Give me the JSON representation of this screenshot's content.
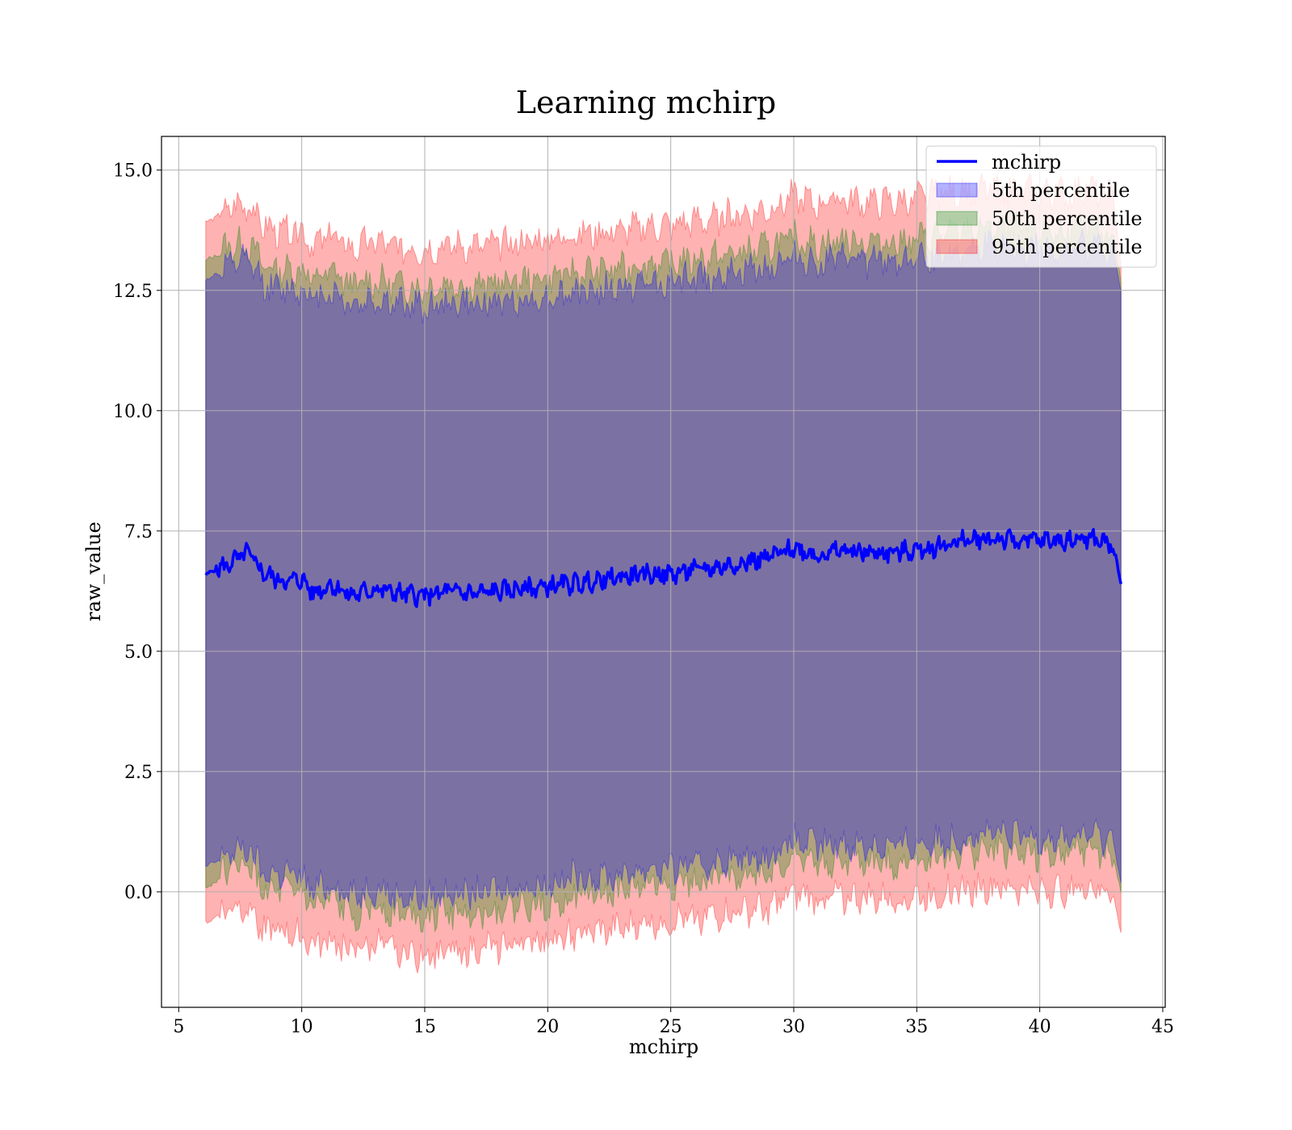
{
  "chart_data": {
    "type": "area",
    "title": "Learning mchirp",
    "xlabel": "mchirp",
    "ylabel": "raw_value",
    "xlim": [
      4.3,
      45.1
    ],
    "ylim": [
      -2.4,
      15.7
    ],
    "xticks": [
      5,
      10,
      15,
      20,
      25,
      30,
      35,
      40,
      45
    ],
    "xtick_labels": [
      "5",
      "10",
      "15",
      "20",
      "25",
      "30",
      "35",
      "40",
      "45"
    ],
    "yticks": [
      0.0,
      2.5,
      5.0,
      7.5,
      10.0,
      12.5,
      15.0
    ],
    "ytick_labels": [
      "0.0",
      "2.5",
      "5.0",
      "7.5",
      "10.0",
      "12.5",
      "15.0"
    ],
    "grid": true,
    "legend_position": "top-right",
    "x": [
      6.1,
      7,
      7.8,
      8.5,
      9.3,
      10,
      10.5,
      11.2,
      12,
      13,
      14,
      15,
      16,
      17,
      18,
      19,
      20,
      21,
      22,
      23,
      24,
      25,
      26,
      27,
      28,
      29,
      30,
      31,
      32,
      33,
      34,
      35,
      36,
      37,
      38,
      39,
      40,
      41,
      42,
      43,
      43.3
    ],
    "series": [
      {
        "name": "mchirp",
        "kind": "line",
        "color": "#0000ff",
        "values": [
          6.6,
          6.8,
          7.05,
          6.6,
          6.45,
          6.5,
          6.2,
          6.4,
          6.15,
          6.3,
          6.2,
          6.15,
          6.25,
          6.2,
          6.25,
          6.3,
          6.35,
          6.4,
          6.45,
          6.55,
          6.6,
          6.6,
          6.7,
          6.75,
          6.85,
          6.95,
          7.15,
          7.0,
          7.1,
          7.05,
          7.05,
          7.1,
          7.2,
          7.3,
          7.35,
          7.3,
          7.3,
          7.3,
          7.35,
          7.2,
          6.4
        ]
      },
      {
        "name": "5th percentile",
        "kind": "band",
        "color": "#0000ff",
        "lower": [
          0.5,
          0.8,
          0.9,
          0.35,
          0.4,
          0.3,
          0.0,
          0.2,
          -0.1,
          0.1,
          -0.1,
          -0.15,
          0.0,
          -0.05,
          0.05,
          0.1,
          0.15,
          0.3,
          0.3,
          0.35,
          0.5,
          0.5,
          0.55,
          0.6,
          0.7,
          0.75,
          1.05,
          0.95,
          1.0,
          0.95,
          0.95,
          1.0,
          1.05,
          1.15,
          1.2,
          1.15,
          1.15,
          1.1,
          1.2,
          1.05,
          0.2
        ],
        "upper": [
          12.7,
          13.0,
          13.1,
          12.6,
          12.5,
          12.55,
          12.3,
          12.5,
          12.2,
          12.3,
          12.2,
          12.15,
          12.25,
          12.2,
          12.25,
          12.3,
          12.35,
          12.45,
          12.5,
          12.55,
          12.65,
          12.65,
          12.75,
          12.8,
          12.9,
          13.0,
          13.2,
          13.05,
          13.15,
          13.1,
          13.1,
          13.15,
          13.25,
          13.35,
          13.4,
          13.35,
          13.35,
          13.3,
          13.4,
          13.25,
          12.5
        ]
      },
      {
        "name": "50th percentile",
        "kind": "band",
        "color": "#008000",
        "lower": [
          0.05,
          0.45,
          0.55,
          0.0,
          0.0,
          -0.05,
          -0.35,
          -0.2,
          -0.45,
          -0.3,
          -0.45,
          -0.5,
          -0.4,
          -0.45,
          -0.35,
          -0.3,
          -0.25,
          -0.1,
          -0.05,
          0.0,
          0.15,
          0.15,
          0.2,
          0.3,
          0.35,
          0.4,
          0.7,
          0.6,
          0.65,
          0.6,
          0.6,
          0.65,
          0.75,
          0.8,
          0.85,
          0.8,
          0.8,
          0.75,
          0.85,
          0.7,
          0.0
        ],
        "upper": [
          13.1,
          13.4,
          13.5,
          13.0,
          12.9,
          12.95,
          12.7,
          12.9,
          12.6,
          12.7,
          12.6,
          12.55,
          12.65,
          12.6,
          12.65,
          12.7,
          12.75,
          12.85,
          12.9,
          12.95,
          13.05,
          13.05,
          13.15,
          13.2,
          13.3,
          13.4,
          13.6,
          13.45,
          13.55,
          13.5,
          13.5,
          13.55,
          13.65,
          13.75,
          13.8,
          13.75,
          13.75,
          13.7,
          13.8,
          13.65,
          12.7
        ]
      },
      {
        "name": "95th percentile",
        "kind": "band",
        "color": "#ff0000",
        "lower": [
          -0.65,
          -0.35,
          -0.25,
          -0.8,
          -0.85,
          -0.9,
          -1.15,
          -1.0,
          -1.25,
          -1.1,
          -1.25,
          -1.3,
          -1.2,
          -1.25,
          -1.15,
          -1.05,
          -1.0,
          -0.9,
          -0.85,
          -0.8,
          -0.65,
          -0.6,
          -0.55,
          -0.5,
          -0.4,
          -0.35,
          -0.05,
          -0.15,
          -0.1,
          -0.15,
          -0.15,
          -0.1,
          -0.05,
          0.05,
          0.1,
          0.05,
          0.05,
          0.0,
          0.1,
          -0.05,
          -0.9
        ],
        "upper": [
          13.9,
          14.2,
          14.3,
          13.8,
          13.7,
          13.75,
          13.45,
          13.65,
          13.35,
          13.5,
          13.4,
          13.35,
          13.45,
          13.4,
          13.45,
          13.5,
          13.55,
          13.65,
          13.7,
          13.75,
          13.85,
          13.85,
          13.95,
          14.0,
          14.1,
          14.2,
          14.45,
          14.3,
          14.4,
          14.35,
          14.35,
          14.4,
          14.5,
          14.55,
          14.6,
          14.55,
          14.55,
          14.5,
          14.6,
          14.45,
          13.0
        ]
      }
    ]
  }
}
